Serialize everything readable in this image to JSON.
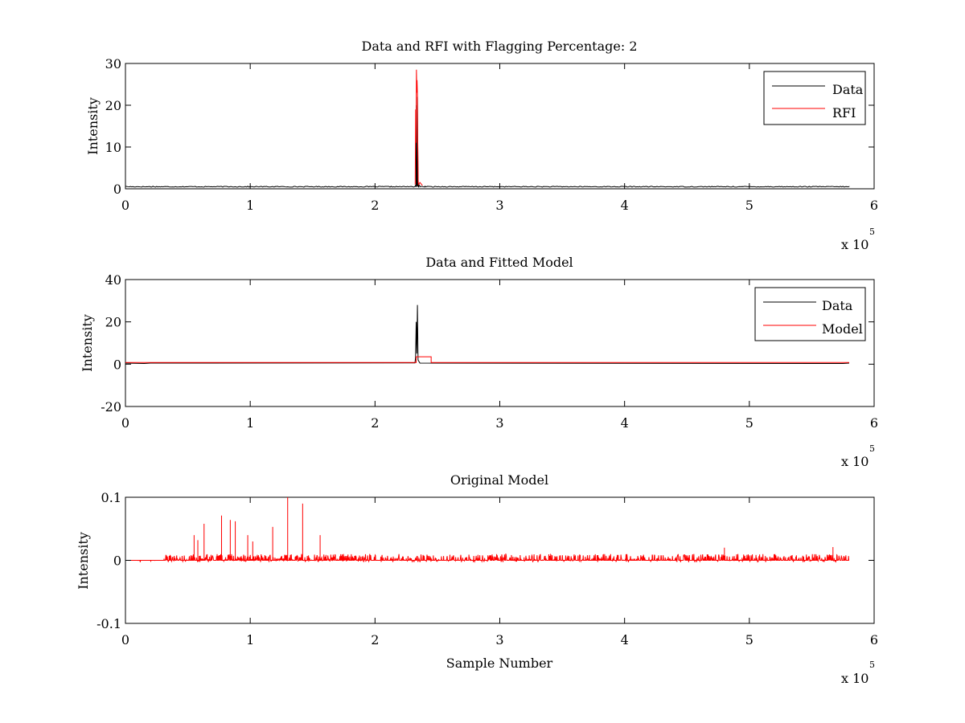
{
  "chart_data": [
    {
      "type": "line",
      "title": "Data and RFI with Flagging Percentage: 2",
      "xlabel": "",
      "ylabel": "Intensity",
      "xlim": [
        0,
        6
      ],
      "ylim": [
        0,
        30
      ],
      "x_ticks": [
        "0",
        "1",
        "2",
        "3",
        "4",
        "5",
        "6"
      ],
      "y_ticks": [
        "0",
        "10",
        "20",
        "30"
      ],
      "x_exponent": "x 10",
      "x_exponent_power": "5",
      "x_scale": 100000,
      "legend": {
        "position": "top-right",
        "entries": [
          "Data",
          "RFI"
        ]
      },
      "series": [
        {
          "name": "Data",
          "color": "#000000",
          "baseline": 0.5,
          "x": [
            0,
            0.2,
            0.22,
            1.2,
            2.3,
            2.325,
            2.33,
            2.335,
            2.34,
            2.345,
            2.35,
            2.36,
            2.4,
            3.2,
            5.8
          ],
          "values": [
            0.6,
            0.5,
            0.6,
            0.5,
            0.5,
            0.8,
            20,
            1,
            22,
            0.6,
            1.1,
            0.5,
            0.6,
            0.5,
            0.5
          ]
        },
        {
          "name": "RFI",
          "color": "#ff0000",
          "x": [
            2.322,
            2.326,
            2.329,
            2.332,
            2.335,
            2.337,
            2.34,
            2.343,
            2.346,
            2.348,
            2.36,
            2.38
          ],
          "values": [
            1,
            19,
            11,
            28.5,
            23,
            26,
            22.5,
            10,
            2,
            1,
            1.5,
            0.8
          ]
        }
      ]
    },
    {
      "type": "line",
      "title": "Data and Fitted Model",
      "xlabel": "",
      "ylabel": "Intensity",
      "xlim": [
        0,
        6
      ],
      "ylim": [
        -20,
        40
      ],
      "x_ticks": [
        "0",
        "1",
        "2",
        "3",
        "4",
        "5",
        "6"
      ],
      "y_ticks": [
        "-20",
        "0",
        "20",
        "40"
      ],
      "x_exponent": "x 10",
      "x_exponent_power": "5",
      "x_scale": 100000,
      "legend": {
        "position": "top-right",
        "entries": [
          "Data",
          "Model"
        ]
      },
      "series": [
        {
          "name": "Data",
          "color": "#000000",
          "x": [
            0,
            0.15,
            0.2,
            2.32,
            2.325,
            2.33,
            2.335,
            2.34,
            2.345,
            2.36,
            5.75,
            5.8
          ],
          "values": [
            0.5,
            0.3,
            0.5,
            0.6,
            3,
            20,
            5,
            28,
            2,
            0.5,
            0.3,
            0.5
          ]
        },
        {
          "name": "Model",
          "color": "#ff0000",
          "x": [
            0,
            2.33,
            2.33,
            2.45,
            2.45,
            5.8
          ],
          "values": [
            0.8,
            0.8,
            3.5,
            3.5,
            0.8,
            0.8
          ]
        }
      ]
    },
    {
      "type": "line",
      "title": "Original Model",
      "xlabel": "Sample Number",
      "ylabel": "Intensity",
      "xlim": [
        0,
        6
      ],
      "ylim": [
        -0.1,
        0.1
      ],
      "x_ticks": [
        "0",
        "1",
        "2",
        "3",
        "4",
        "5",
        "6"
      ],
      "y_ticks": [
        "-0.1",
        "0",
        "0.1"
      ],
      "x_exponent": "x 10",
      "x_exponent_power": "5",
      "x_scale": 100000,
      "series": [
        {
          "name": "",
          "color": "#ff0000",
          "x_range": [
            0,
            5.8
          ],
          "noise_amplitude": 0.01,
          "spikes": [
            {
              "x": 0.55,
              "y": 0.04
            },
            {
              "x": 0.58,
              "y": 0.032
            },
            {
              "x": 0.63,
              "y": 0.058
            },
            {
              "x": 0.77,
              "y": 0.071
            },
            {
              "x": 0.84,
              "y": 0.064
            },
            {
              "x": 0.88,
              "y": 0.062
            },
            {
              "x": 0.98,
              "y": 0.04
            },
            {
              "x": 1.02,
              "y": 0.03
            },
            {
              "x": 1.18,
              "y": 0.053
            },
            {
              "x": 1.3,
              "y": 0.1
            },
            {
              "x": 1.42,
              "y": 0.09
            },
            {
              "x": 1.56,
              "y": 0.04
            },
            {
              "x": 4.8,
              "y": 0.02
            },
            {
              "x": 5.67,
              "y": 0.021
            }
          ]
        }
      ]
    }
  ]
}
